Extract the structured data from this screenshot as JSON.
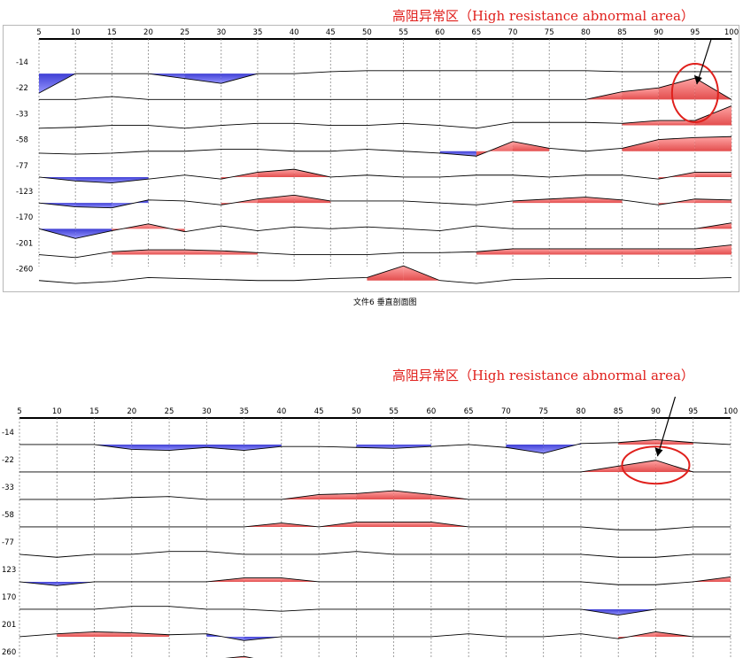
{
  "annotations": {
    "top": "高阻异常区（High resistance abnormal area）",
    "bottom": "高阻异常区（High resistance abnormal area）"
  },
  "colors": {
    "high": "#e03a3a",
    "low": "#2a2ad0",
    "circle": "#e0201c",
    "grid": "#888888",
    "line": "#000000"
  },
  "chart_data": [
    {
      "type": "line",
      "title": "文件6 垂直剖面图",
      "x_ticks": [
        5,
        10,
        15,
        20,
        25,
        30,
        35,
        40,
        45,
        50,
        55,
        60,
        65,
        70,
        75,
        80,
        85,
        90,
        95,
        100
      ],
      "y_labels": [
        "-14",
        "-22",
        "-33",
        "-58",
        "-77",
        "-123",
        "-170",
        "-201",
        "-260"
      ],
      "xlim": [
        5,
        100
      ],
      "grid": "vertical dashed",
      "series": [
        {
          "values": [
            -2,
            0,
            0,
            0,
            -0.5,
            -1,
            0,
            0,
            0.2,
            0.3,
            0.3,
            0.3,
            0.3,
            0.3,
            0.3,
            0.3,
            0.2,
            0.2,
            0.2,
            0.2
          ]
        },
        {
          "values": [
            0,
            0,
            0.3,
            0,
            0,
            0,
            0,
            0,
            0,
            0,
            0,
            0,
            0,
            0,
            0,
            0,
            0.8,
            1.2,
            2.2,
            0
          ]
        },
        {
          "values": [
            -0.3,
            -0.2,
            0,
            0,
            -0.3,
            0,
            0.2,
            0.2,
            0,
            0,
            0.2,
            0,
            -0.3,
            0.3,
            0.3,
            0.3,
            0.2,
            0.5,
            0.5,
            2.0
          ]
        },
        {
          "values": [
            -0.2,
            -0.3,
            -0.2,
            0,
            0,
            0.2,
            0.2,
            0,
            0,
            0.2,
            0,
            -0.2,
            -0.5,
            1.0,
            0.3,
            0,
            0.3,
            1.2,
            1.4,
            1.5
          ]
        },
        {
          "values": [
            0,
            -0.4,
            -0.6,
            -0.2,
            0.2,
            -0.2,
            0.5,
            0.8,
            0,
            0.2,
            0,
            0,
            0.2,
            0.2,
            0,
            0.2,
            0.2,
            -0.2,
            0.5,
            0.5
          ]
        },
        {
          "values": [
            0,
            -0.4,
            -0.5,
            0.3,
            0.2,
            -0.2,
            0.4,
            0.8,
            0.2,
            0.2,
            0.2,
            0,
            -0.2,
            0.2,
            0.4,
            0.6,
            0.3,
            -0.2,
            0.4,
            0.3
          ]
        },
        {
          "values": [
            0,
            -1.0,
            -0.2,
            0.5,
            -0.3,
            0.3,
            -0.2,
            0.2,
            0,
            0.2,
            0,
            -0.2,
            0.3,
            0,
            0,
            0,
            0,
            0,
            0,
            0.6
          ]
        },
        {
          "values": [
            0,
            -0.3,
            0.3,
            0.5,
            0.5,
            0.4,
            0.2,
            0,
            0,
            0,
            0.2,
            0.2,
            0.3,
            0.6,
            0.6,
            0.6,
            0.6,
            0.6,
            0.6,
            1.0
          ]
        },
        {
          "values": [
            0,
            -0.3,
            -0.1,
            0.3,
            0.2,
            0.1,
            0,
            0,
            0.2,
            0.3,
            1.5,
            0,
            -0.3,
            0.1,
            0.2,
            0.2,
            0.2,
            0.2,
            0.2,
            0.3
          ]
        }
      ],
      "anomaly": {
        "x": 95,
        "y_label": "-22",
        "label": "高阻异常区（High resistance abnormal area）"
      }
    },
    {
      "type": "line",
      "title": "",
      "x_ticks": [
        5,
        10,
        15,
        20,
        25,
        30,
        35,
        40,
        45,
        50,
        55,
        60,
        65,
        70,
        75,
        80,
        85,
        90,
        95,
        100
      ],
      "y_labels": [
        "-14",
        "-22",
        "-33",
        "-58",
        "-77",
        "123",
        "170",
        "201",
        "260"
      ],
      "xlim": [
        5,
        100
      ],
      "grid": "vertical dashed",
      "series": [
        {
          "values": [
            0,
            0,
            0,
            -0.5,
            -0.6,
            -0.3,
            -0.6,
            -0.2,
            -0.2,
            -0.3,
            -0.4,
            -0.2,
            0,
            -0.3,
            -0.9,
            0.1,
            0.2,
            0.5,
            0.2,
            0
          ]
        },
        {
          "values": [
            0,
            0,
            0,
            0,
            0,
            0,
            0,
            0,
            0,
            0,
            0,
            0,
            0,
            0,
            0,
            0,
            0.6,
            1.2,
            0,
            0
          ]
        },
        {
          "values": [
            0,
            0,
            0,
            0.2,
            0.3,
            0,
            0,
            0,
            0.5,
            0.6,
            0.9,
            0.5,
            0,
            0,
            0,
            0,
            0,
            0,
            0,
            0
          ]
        },
        {
          "values": [
            0,
            0,
            0,
            0,
            0,
            0,
            0,
            0.4,
            0,
            0.5,
            0.5,
            0.5,
            0,
            0,
            0,
            0,
            -0.3,
            -0.3,
            0,
            0
          ]
        },
        {
          "values": [
            0,
            -0.3,
            0,
            0,
            0.3,
            0.3,
            0,
            0,
            0,
            0.3,
            0,
            0,
            0,
            0,
            0,
            0,
            -0.3,
            -0.3,
            0,
            0
          ]
        },
        {
          "values": [
            0,
            -0.4,
            0,
            0,
            0,
            0,
            0.4,
            0.4,
            0,
            0,
            0,
            0,
            0,
            0,
            0,
            0,
            -0.3,
            -0.3,
            0,
            0.5
          ]
        },
        {
          "values": [
            0,
            0,
            0,
            0.3,
            0.3,
            0,
            0,
            -0.2,
            0,
            0,
            0,
            0,
            0,
            0,
            0,
            0,
            -0.6,
            0,
            0,
            0
          ]
        },
        {
          "values": [
            0,
            0.3,
            0.5,
            0.4,
            0.2,
            0.3,
            -0.4,
            0,
            0,
            0,
            0,
            0,
            0.3,
            0,
            0,
            0.3,
            -0.2,
            0.5,
            0,
            0
          ]
        },
        {
          "values": [
            0,
            0.3,
            0,
            0.4,
            0,
            0.4,
            0.8,
            0,
            0,
            0.2,
            0,
            0,
            0.2,
            0,
            0,
            0,
            0.2,
            0.5,
            0,
            0
          ]
        }
      ],
      "anomaly": {
        "x": 90,
        "y_label": "-22",
        "label": "高阻异常区（High resistance abnormal area）"
      }
    }
  ]
}
